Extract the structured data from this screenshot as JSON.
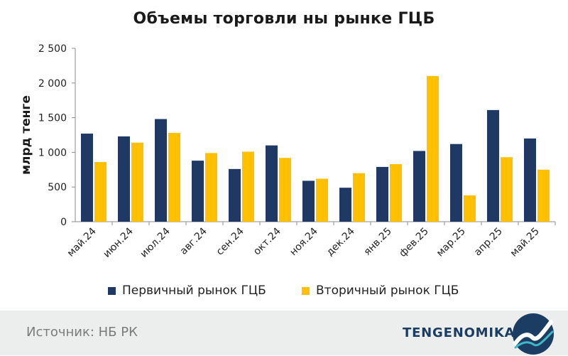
{
  "title": "Объемы торговли ны рынке ГЦБ",
  "source": "Источник: НБ РК",
  "brand": "TENGENOMIKA",
  "colors": {
    "primary": "#1f3864",
    "secondary": "#ffc000",
    "footer_bg": "#eceded",
    "logo": "#1c3d63"
  },
  "icons": {
    "logo": "tengenomika-logo-icon"
  },
  "chart_data": {
    "type": "bar",
    "ylabel": "млрд тенге",
    "ylim": [
      0,
      2500
    ],
    "yticks": [
      0,
      500,
      1000,
      1500,
      2000,
      2500
    ],
    "ytick_labels": [
      "0",
      "500",
      "1 000",
      "1 500",
      "2 000",
      "2 500"
    ],
    "grid": false,
    "legend_position": "bottom",
    "categories": [
      "май.24",
      "июн.24",
      "июл.24",
      "авг.24",
      "сен.24",
      "окт.24",
      "ноя.24",
      "дек.24",
      "янв.25",
      "фев.25",
      "мар.25",
      "апр.25",
      "май.25"
    ],
    "series": [
      {
        "name": "Первичный рынок ГЦБ",
        "color": "#1f3864",
        "values": [
          1270,
          1230,
          1480,
          880,
          760,
          1100,
          590,
          490,
          790,
          1020,
          1120,
          1610,
          1200
        ]
      },
      {
        "name": "Вторичный рынок ГЦБ",
        "color": "#ffc000",
        "values": [
          860,
          1140,
          1280,
          990,
          1010,
          920,
          620,
          700,
          830,
          2100,
          380,
          930,
          750
        ]
      }
    ]
  }
}
